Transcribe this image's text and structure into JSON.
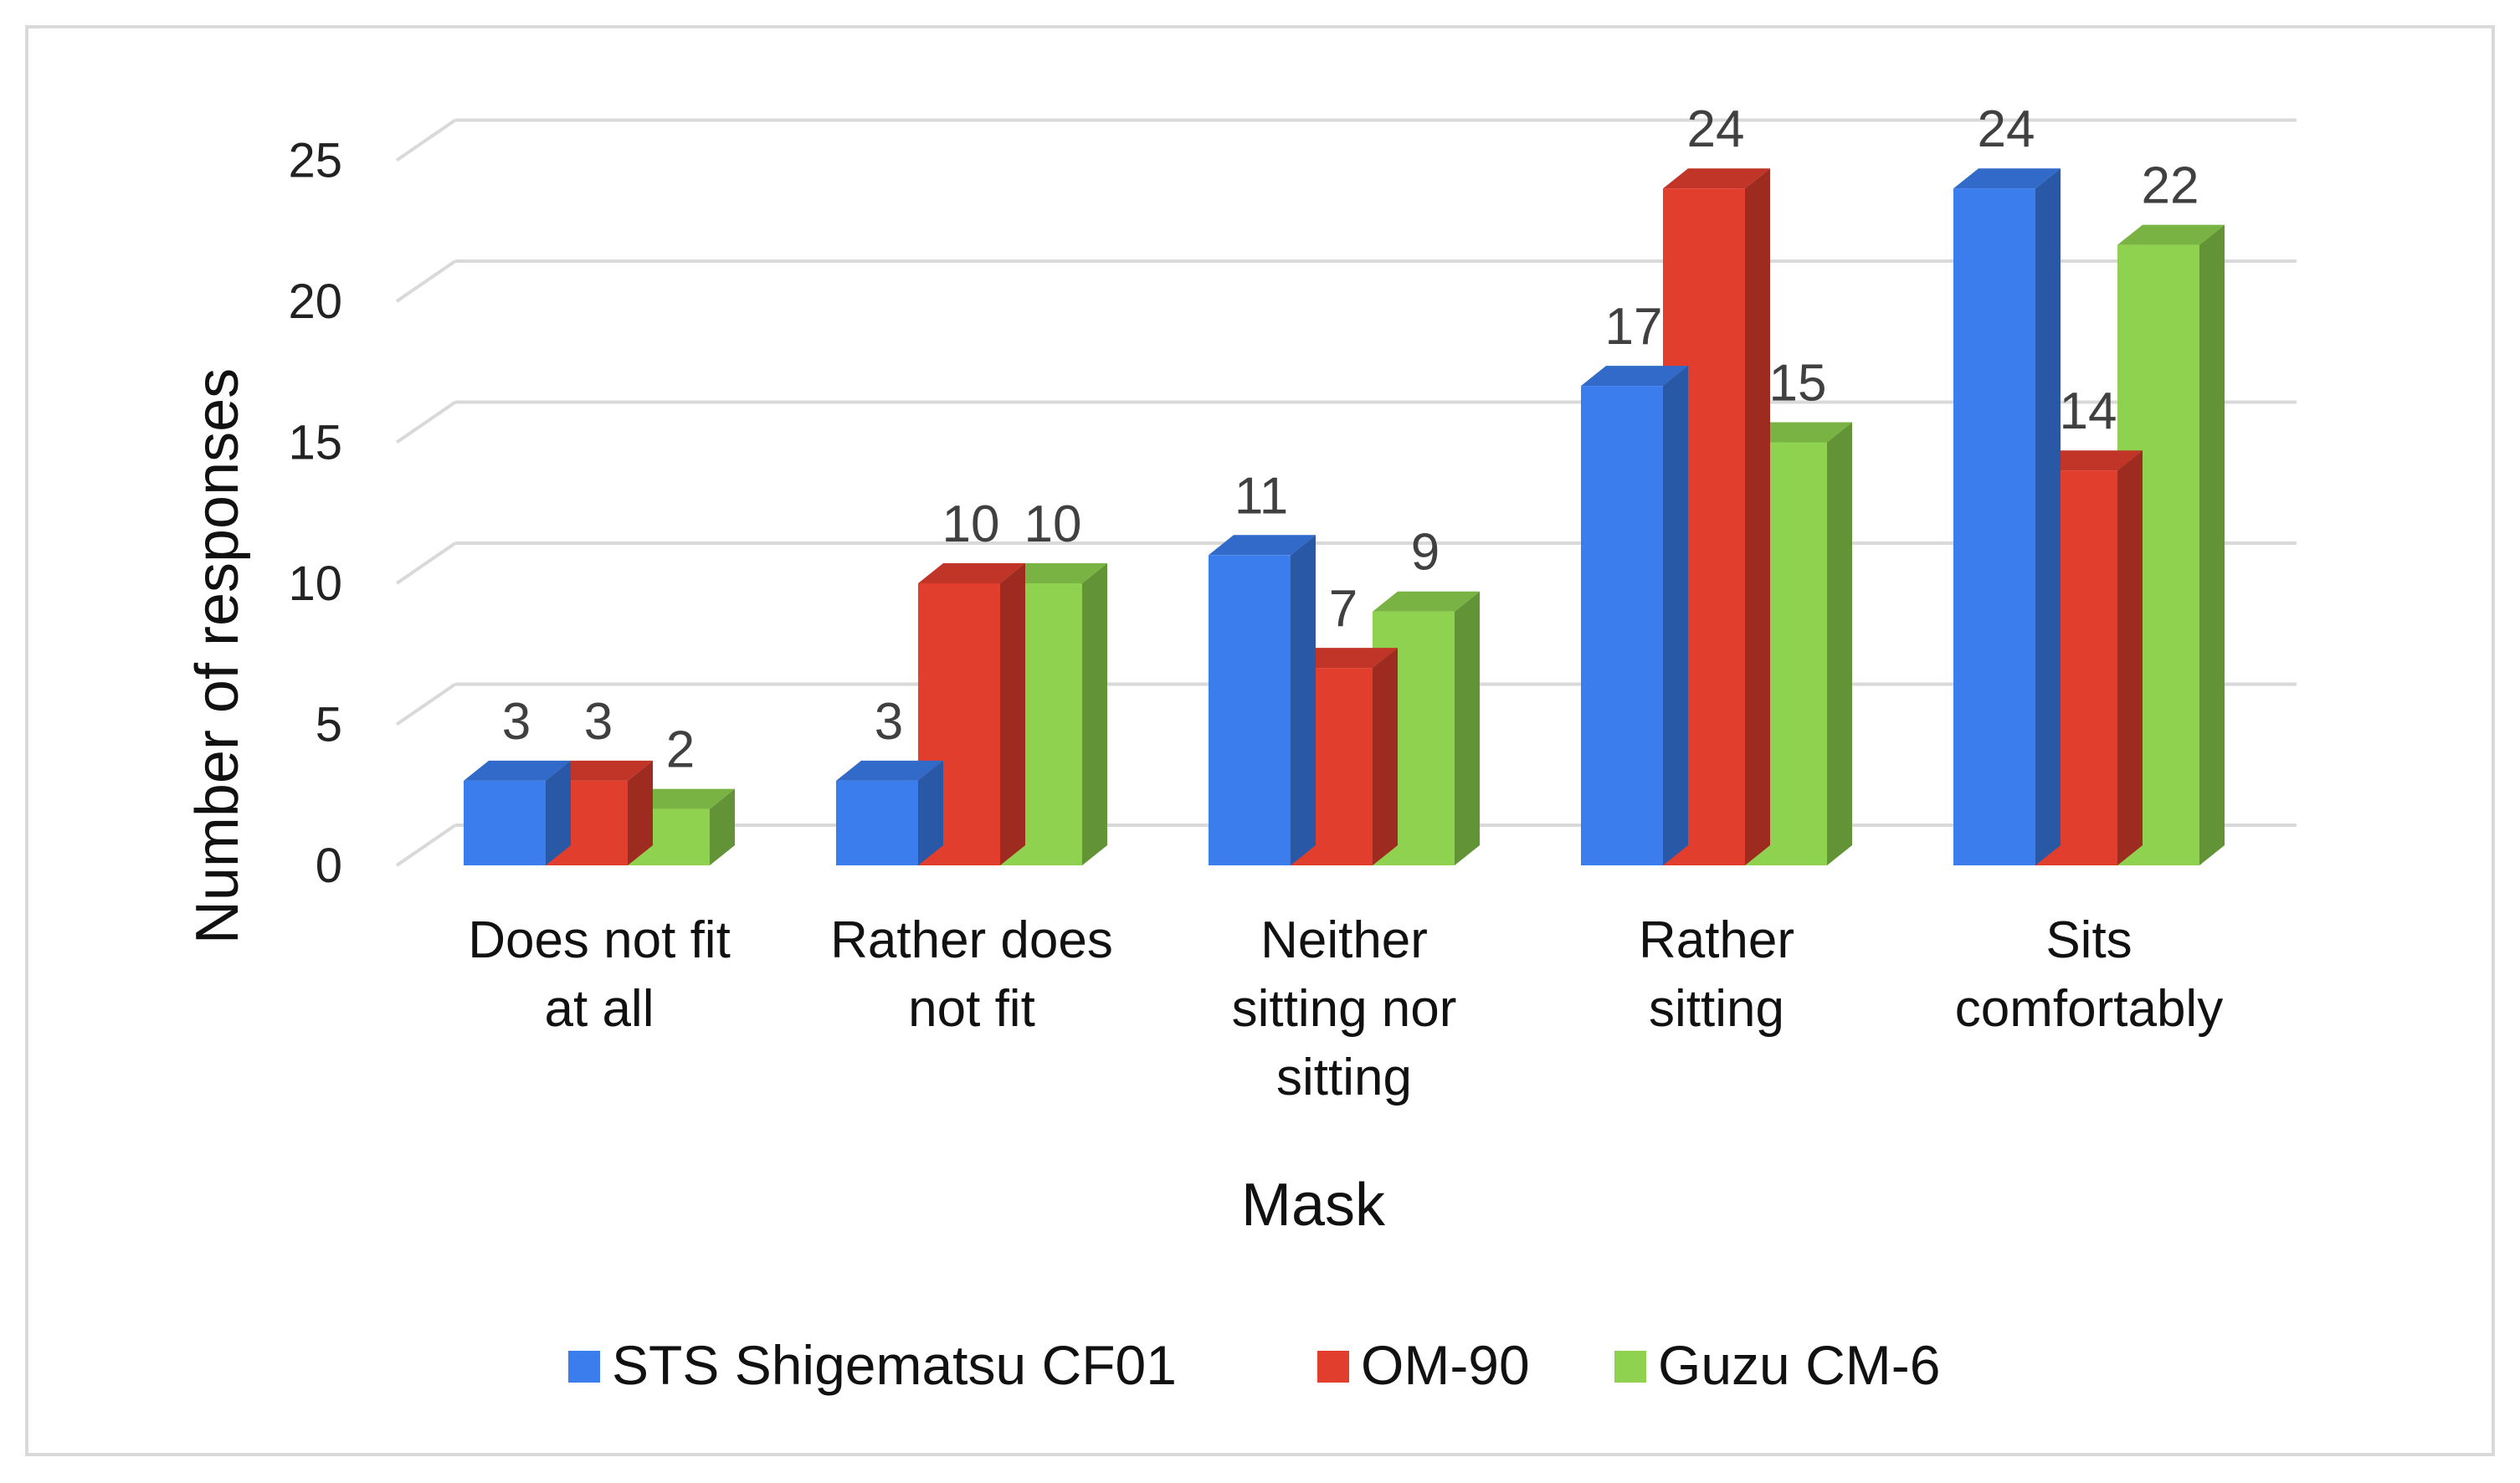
{
  "chart_data": {
    "type": "bar",
    "style": "3d-clustered-column",
    "title": "",
    "xlabel": "Mask",
    "ylabel": "Number of responses",
    "ylim": [
      0,
      25
    ],
    "yticks": [
      0,
      5,
      10,
      15,
      20,
      25
    ],
    "grid": true,
    "legend_position": "bottom",
    "categories": [
      [
        "Does not fit",
        "at all"
      ],
      [
        "Rather does",
        "not fit"
      ],
      [
        "Neither",
        "sitting nor",
        "sitting"
      ],
      [
        "Rather",
        "sitting"
      ],
      [
        "Sits",
        "comfortably"
      ]
    ],
    "series": [
      {
        "name": "STS Shigematsu CF01",
        "color": "#3b7ded",
        "values": [
          3,
          3,
          11,
          17,
          24
        ]
      },
      {
        "name": "OM-90",
        "color": "#e23e2e",
        "values": [
          3,
          10,
          7,
          24,
          14
        ]
      },
      {
        "name": "Guzu CM-6",
        "color": "#8ed24f",
        "values": [
          2,
          10,
          9,
          15,
          22
        ]
      }
    ]
  }
}
